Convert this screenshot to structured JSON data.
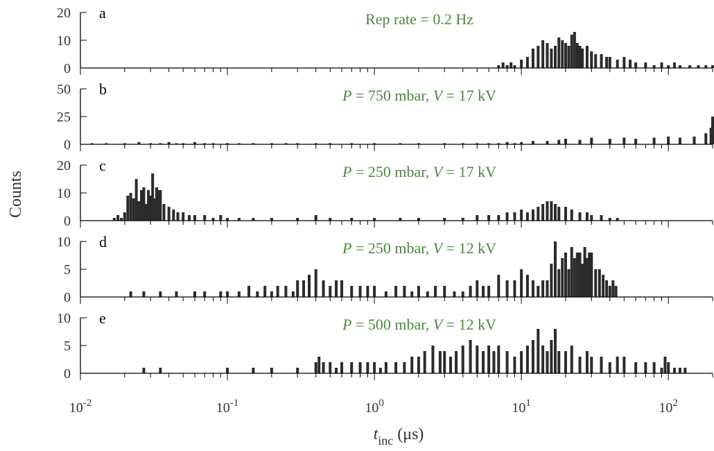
{
  "chart_data": {
    "type": "bar",
    "x_scale": "log",
    "xlim": [
      0.01,
      200
    ],
    "xlabel": "t_inc (μs)",
    "xlabel_main": "t",
    "xlabel_sub": "inc",
    "xlabel_unit": "(μs)",
    "ylabel": "Counts",
    "x_ticks": [
      {
        "value": 0.01,
        "base": "10",
        "exp": "-2"
      },
      {
        "value": 0.1,
        "base": "10",
        "exp": "-1"
      },
      {
        "value": 1,
        "base": "10",
        "exp": "0"
      },
      {
        "value": 10,
        "base": "10",
        "exp": "1"
      },
      {
        "value": 100,
        "base": "10",
        "exp": "2"
      }
    ],
    "grid": false,
    "annotation_color": "#4a8a3c",
    "bar_color": "#2b2b2b",
    "panels": [
      {
        "letter": "a",
        "annotation": {
          "text": "Rep rate = 0.2 Hz"
        },
        "ylim": [
          0,
          20
        ],
        "yticks": [
          0,
          10,
          20
        ],
        "x": [
          7,
          7.5,
          8,
          8.5,
          9,
          10,
          11,
          12,
          13,
          14,
          15,
          16,
          17,
          18,
          19,
          20,
          21,
          22,
          23,
          24,
          25,
          26,
          28,
          30,
          32,
          35,
          38,
          40,
          45,
          50,
          55,
          60,
          70,
          80,
          90,
          100,
          110,
          120,
          140,
          160,
          180,
          200
        ],
        "values": [
          1,
          2,
          1,
          2,
          1,
          3,
          4,
          7,
          8,
          10,
          9,
          7,
          8,
          11,
          10,
          9,
          8,
          12,
          13,
          9,
          8,
          7,
          8,
          6,
          5,
          5,
          4,
          4,
          3,
          4,
          3,
          2,
          2,
          1,
          2,
          1,
          2,
          1,
          1,
          1,
          1,
          1
        ]
      },
      {
        "letter": "b",
        "annotation": {
          "italic1": "P",
          "text1": " = 750 mbar, ",
          "italic2": "V",
          "text2": " = 17 kV"
        },
        "ylim": [
          0,
          50
        ],
        "yticks": [
          0,
          25,
          50
        ],
        "x": [
          0.012,
          0.015,
          0.02,
          0.025,
          0.03,
          0.035,
          0.04,
          0.045,
          0.05,
          0.06,
          0.07,
          0.08,
          0.1,
          0.12,
          0.15,
          0.2,
          0.25,
          0.3,
          0.4,
          0.5,
          0.7,
          1,
          1.5,
          2,
          3,
          4,
          5,
          6,
          7,
          8,
          9,
          10,
          12,
          15,
          18,
          20,
          25,
          30,
          40,
          50,
          60,
          80,
          100,
          120,
          150,
          180,
          195,
          200
        ],
        "values": [
          1,
          1,
          1,
          2,
          1,
          1,
          2,
          1,
          1,
          2,
          1,
          1,
          1,
          1,
          1,
          1,
          1,
          1,
          1,
          1,
          1,
          1,
          1,
          1,
          1,
          1,
          1,
          1,
          1,
          2,
          1,
          2,
          3,
          3,
          4,
          5,
          4,
          6,
          5,
          6,
          5,
          6,
          7,
          6,
          7,
          10,
          15,
          25
        ]
      },
      {
        "letter": "c",
        "annotation": {
          "italic1": "P",
          "text1": " = 250 mbar, ",
          "italic2": "V",
          "text2": " = 17 kV"
        },
        "ylim": [
          0,
          20
        ],
        "yticks": [
          0,
          10,
          20
        ],
        "x": [
          0.017,
          0.018,
          0.019,
          0.02,
          0.021,
          0.022,
          0.023,
          0.024,
          0.025,
          0.026,
          0.027,
          0.028,
          0.029,
          0.03,
          0.031,
          0.032,
          0.033,
          0.034,
          0.035,
          0.037,
          0.04,
          0.043,
          0.046,
          0.05,
          0.055,
          0.06,
          0.07,
          0.08,
          0.09,
          0.1,
          0.12,
          0.15,
          0.2,
          0.3,
          0.4,
          0.5,
          0.7,
          1,
          1.5,
          2,
          3,
          4,
          5,
          6,
          7,
          8,
          9,
          10,
          11,
          12,
          13,
          14,
          15,
          16,
          17,
          18,
          20,
          22,
          25,
          28,
          30,
          35,
          40,
          45
        ],
        "values": [
          1,
          2,
          1,
          3,
          9,
          10,
          8,
          15,
          7,
          11,
          12,
          6,
          11,
          9,
          17,
          8,
          12,
          11,
          11,
          6,
          5,
          4,
          3,
          3,
          2,
          2,
          2,
          1,
          2,
          1,
          1,
          1,
          1,
          1,
          2,
          1,
          1,
          1,
          1,
          1,
          1,
          1,
          2,
          2,
          2,
          3,
          3,
          4,
          3,
          4,
          5,
          6,
          7,
          7,
          6,
          5,
          5,
          4,
          3,
          3,
          2,
          2,
          1,
          1
        ]
      },
      {
        "letter": "d",
        "annotation": {
          "italic1": "P",
          "text1": " = 250 mbar, ",
          "italic2": "V",
          "text2": " = 12 kV"
        },
        "ylim": [
          0,
          10
        ],
        "yticks": [
          0,
          5,
          10
        ],
        "x": [
          0.022,
          0.027,
          0.035,
          0.045,
          0.06,
          0.07,
          0.09,
          0.1,
          0.12,
          0.14,
          0.16,
          0.18,
          0.2,
          0.22,
          0.25,
          0.28,
          0.3,
          0.33,
          0.36,
          0.4,
          0.45,
          0.5,
          0.55,
          0.6,
          0.7,
          0.8,
          0.9,
          1,
          1.2,
          1.4,
          1.6,
          1.8,
          2,
          2.3,
          2.6,
          3,
          3.5,
          4,
          4.5,
          5,
          5.5,
          6,
          7,
          8,
          9,
          10,
          11,
          12,
          13,
          14,
          15,
          16,
          17,
          18,
          19,
          20,
          21,
          22,
          23,
          24,
          25,
          26,
          27,
          28,
          29,
          30,
          32,
          34,
          36,
          38,
          40,
          42,
          44
        ],
        "values": [
          1,
          1,
          1,
          1,
          1,
          1,
          1,
          1,
          1,
          2,
          1,
          2,
          1,
          2,
          2,
          1,
          3,
          3,
          4,
          5,
          3,
          2,
          3,
          3,
          2,
          2,
          2,
          2,
          1,
          2,
          2,
          1,
          2,
          1,
          2,
          2,
          1,
          1,
          2,
          3,
          2,
          2,
          4,
          3,
          3,
          5,
          4,
          3,
          2,
          3,
          3,
          6,
          10,
          5,
          7,
          8,
          5,
          9,
          7,
          8,
          8,
          6,
          9,
          7,
          8,
          8,
          5,
          5,
          4,
          3,
          2,
          3,
          2
        ]
      },
      {
        "letter": "e",
        "annotation": {
          "italic1": "P",
          "text1": " = 500 mbar, ",
          "italic2": "V",
          "text2": " = 12 kV"
        },
        "ylim": [
          0,
          10
        ],
        "yticks": [
          0,
          5,
          10
        ],
        "x": [
          0.027,
          0.035,
          0.1,
          0.15,
          0.2,
          0.3,
          0.4,
          0.42,
          0.45,
          0.5,
          0.55,
          0.6,
          0.7,
          0.8,
          0.9,
          1,
          1.1,
          1.2,
          1.4,
          1.6,
          1.8,
          2,
          2.2,
          2.5,
          2.8,
          3,
          3.3,
          3.6,
          4,
          4.5,
          5,
          5.5,
          6,
          6.5,
          7,
          8,
          9,
          10,
          11,
          12,
          13,
          14,
          15,
          16,
          17,
          18,
          20,
          22,
          25,
          28,
          30,
          35,
          40,
          45,
          50,
          60,
          70,
          80,
          90,
          95,
          100,
          110,
          120,
          130
        ],
        "values": [
          1,
          1,
          1,
          1,
          1,
          1,
          2,
          3,
          2,
          2,
          1,
          2,
          2,
          2,
          2,
          2,
          1,
          2,
          2,
          2,
          3,
          3,
          4,
          5,
          4,
          4,
          3,
          4,
          5,
          6,
          5,
          4,
          5,
          4,
          5,
          4,
          3,
          4,
          5,
          6,
          8,
          5,
          4,
          6,
          8,
          4,
          4,
          5,
          3,
          4,
          3,
          3,
          2,
          3,
          3,
          2,
          2,
          2,
          1,
          3,
          2,
          1,
          1,
          1
        ]
      }
    ]
  }
}
